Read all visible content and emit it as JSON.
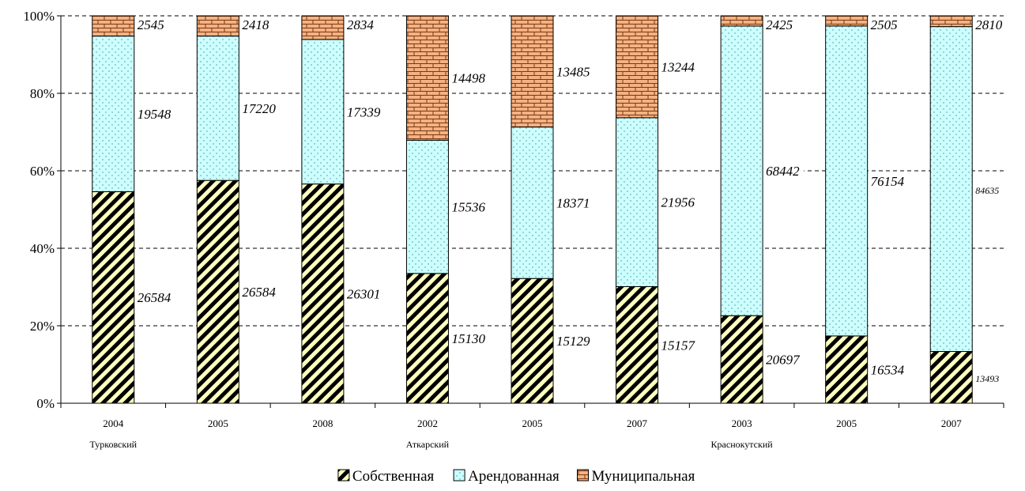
{
  "chart_data": {
    "type": "bar",
    "stacked": "percent",
    "yaxis_ticks": [
      "0%",
      "20%",
      "40%",
      "60%",
      "80%",
      "100%"
    ],
    "ylim": [
      0,
      100
    ],
    "grid": "horizontal-dashed",
    "legend_position": "bottom",
    "colors": {
      "sobstvennaya": "#ffffc0",
      "arendovannaya": "#ccffff",
      "municipalnaya": "#f4b183"
    },
    "categories": [
      {
        "year": "2004",
        "group": "Турковский"
      },
      {
        "year": "2005",
        "group": ""
      },
      {
        "year": "2008",
        "group": ""
      },
      {
        "year": "2002",
        "group": "Аткарский"
      },
      {
        "year": "2005",
        "group": ""
      },
      {
        "year": "2007",
        "group": ""
      },
      {
        "year": "2003",
        "group": "Краснокутский"
      },
      {
        "year": "2005",
        "group": ""
      },
      {
        "year": "2007",
        "group": ""
      }
    ],
    "series": [
      {
        "name": "Собственная",
        "values": [
          26584,
          26584,
          26301,
          15130,
          15129,
          15157,
          20697,
          16534,
          13493
        ]
      },
      {
        "name": "Арендованная",
        "values": [
          19548,
          17220,
          17339,
          15536,
          18371,
          21956,
          68442,
          76154,
          84635
        ]
      },
      {
        "name": "Муниципальная",
        "values": [
          2545,
          2418,
          2834,
          14498,
          13485,
          13244,
          2425,
          2505,
          2810
        ]
      }
    ]
  }
}
